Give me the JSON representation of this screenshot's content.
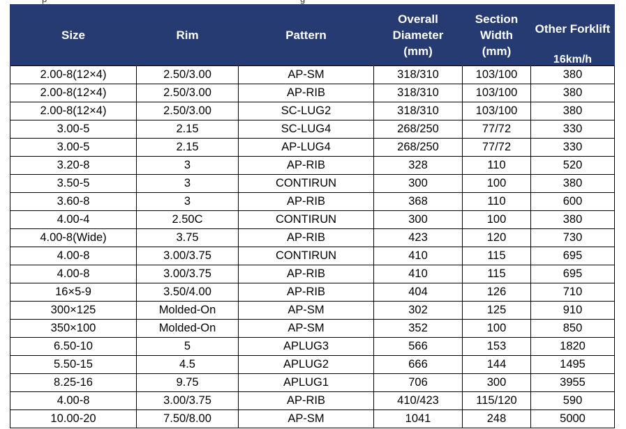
{
  "top_fragment": [
    "p",
    "g"
  ],
  "headers": {
    "size": "Size",
    "rim": "Rim",
    "pattern": "Pattern",
    "overall_diameter": [
      "Overall",
      "Diameter",
      "(mm)"
    ],
    "section_width": [
      "Section",
      "Width",
      "(mm)"
    ],
    "other_forklift": "Other Forklift",
    "speed": "16km/h"
  },
  "rows": [
    [
      "2.00-8(12×4)",
      "2.50/3.00",
      "AP-SM",
      "318/310",
      "103/100",
      "380"
    ],
    [
      "2.00-8(12×4)",
      "2.50/3.00",
      "AP-RIB",
      "318/310",
      "103/100",
      "380"
    ],
    [
      "2.00-8(12×4)",
      "2.50/3.00",
      "SC-LUG2",
      "318/310",
      "103/100",
      "380"
    ],
    [
      "3.00-5",
      "2.15",
      "SC-LUG4",
      "268/250",
      "77/72",
      "330"
    ],
    [
      "3.00-5",
      "2.15",
      "AP-LUG4",
      "268/250",
      "77/72",
      "330"
    ],
    [
      "3.20-8",
      "3",
      "AP-RIB",
      "328",
      "110",
      "520"
    ],
    [
      "3.50-5",
      "3",
      "CONTIRUN",
      "300",
      "100",
      "380"
    ],
    [
      "3.60-8",
      "3",
      "AP-RIB",
      "368",
      "110",
      "600"
    ],
    [
      "4.00-4",
      "2.50C",
      "CONTIRUN",
      "300",
      "100",
      "380"
    ],
    [
      "4.00-8(Wide)",
      "3.75",
      "AP-RIB",
      "423",
      "120",
      "730"
    ],
    [
      "4.00-8",
      "3.00/3.75",
      "CONTIRUN",
      "410",
      "115",
      "695"
    ],
    [
      "4.00-8",
      "3.00/3.75",
      "AP-RIB",
      "410",
      "115",
      "695"
    ],
    [
      "16×5-9",
      "3.50/4.00",
      "AP-RIB",
      "404",
      "126",
      "710"
    ],
    [
      "300×125",
      "Molded-On",
      "AP-SM",
      "302",
      "125",
      "910"
    ],
    [
      "350×100",
      "Molded-On",
      "AP-SM",
      "352",
      "100",
      "850"
    ],
    [
      "6.50-10",
      "5",
      "APLUG3",
      "566",
      "153",
      "1820"
    ],
    [
      "5.50-15",
      "4.5",
      "APLUG2",
      "666",
      "144",
      "1495"
    ],
    [
      "8.25-16",
      "9.75",
      "APLUG1",
      "706",
      "300",
      "3955"
    ],
    [
      "4.00-8",
      "3.00/3.75",
      "AP-RIB",
      "410/423",
      "115/120",
      "590"
    ],
    [
      "10.00-20",
      "7.50/8.00",
      "AP-SM",
      "1041",
      "248",
      "5000"
    ]
  ]
}
